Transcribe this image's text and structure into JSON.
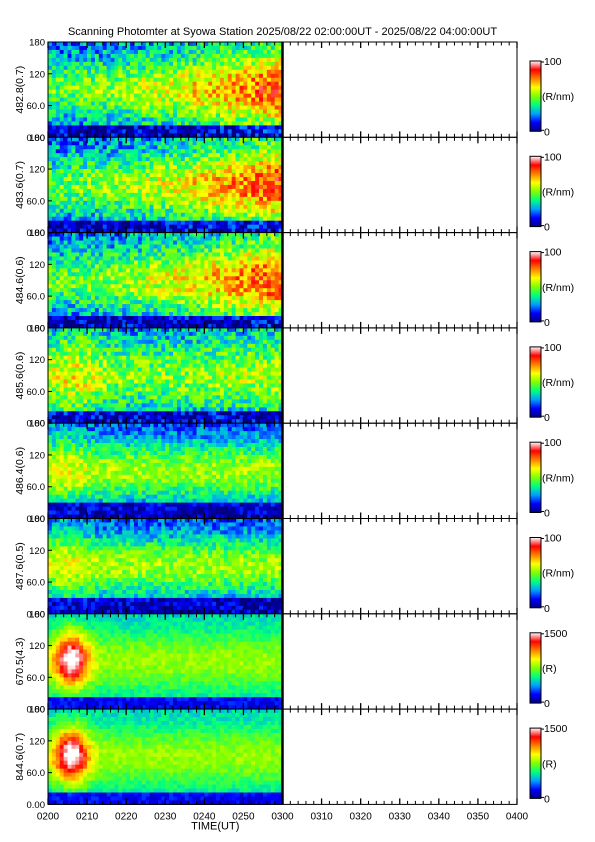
{
  "title": "Scanning Photomter at Syowa Station  2025/08/22 02:00:00UT - 2025/08/22 04:00:00UT",
  "xlabel": "TIME(UT)",
  "x_ticks": [
    "0200",
    "0210",
    "0220",
    "0230",
    "0240",
    "0250",
    "0300",
    "0310",
    "0320",
    "0330",
    "0340",
    "0350",
    "0400"
  ],
  "y_ticks": [
    "0.00",
    "60.0",
    "120",
    "180"
  ],
  "colors": {
    "scale": [
      "#000080",
      "#0000ff",
      "#00a0ff",
      "#00ff80",
      "#80ff00",
      "#ffff00",
      "#ff8000",
      "#ff0000",
      "#ffffff"
    ]
  },
  "chart_data": {
    "type": "heatmap",
    "x_range": [
      "0200",
      "0400"
    ],
    "data_end": "0300",
    "ylim": [
      0,
      180
    ],
    "panels": [
      {
        "ylabel": "482.8(0.7)",
        "unit": "(R/nm)",
        "cmax": "100",
        "cmin": "0",
        "profile": "rise"
      },
      {
        "ylabel": "483.6(0.7)",
        "unit": "(R/nm)",
        "cmax": "100",
        "cmin": "0",
        "profile": "rise"
      },
      {
        "ylabel": "484.6(0.6)",
        "unit": "(R/nm)",
        "cmax": "100",
        "cmin": "0",
        "profile": "rise"
      },
      {
        "ylabel": "485.6(0.6)",
        "unit": "(R/nm)",
        "cmax": "100",
        "cmin": "0",
        "profile": "early"
      },
      {
        "ylabel": "486.4(0.6)",
        "unit": "(R/nm)",
        "cmax": "100",
        "cmin": "0",
        "profile": "steady"
      },
      {
        "ylabel": "487.6(0.5)",
        "unit": "(R/nm)",
        "cmax": "100",
        "cmin": "0",
        "profile": "steady"
      },
      {
        "ylabel": "670.5(4.3)",
        "unit": "(R)",
        "cmax": "1500",
        "cmin": "0",
        "profile": "burst"
      },
      {
        "ylabel": "844.6(0.7)",
        "unit": "(R)",
        "cmax": "1500",
        "cmin": "0",
        "profile": "burst"
      }
    ]
  }
}
